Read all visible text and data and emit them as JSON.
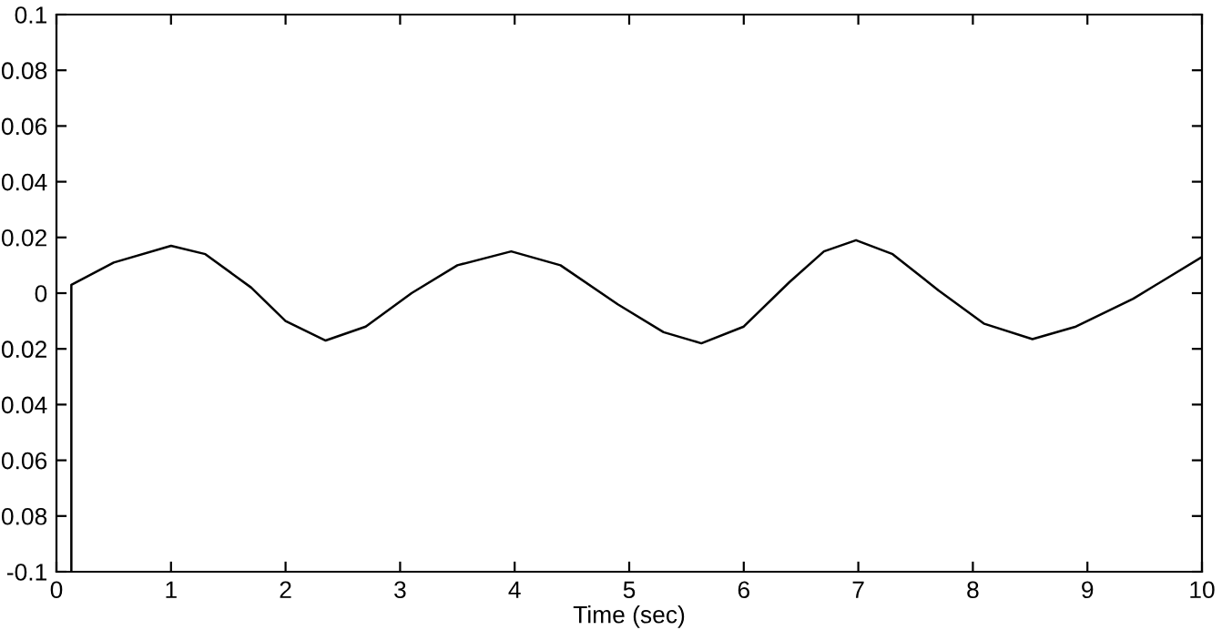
{
  "chart_data": {
    "type": "line",
    "xlabel": "Time (sec)",
    "x": [
      0.13,
      0.13,
      0.5,
      1.0,
      1.3,
      1.7,
      2.0,
      2.35,
      2.7,
      3.1,
      3.5,
      3.97,
      4.4,
      4.9,
      5.3,
      5.63,
      6.0,
      6.4,
      6.7,
      6.98,
      7.3,
      7.7,
      8.1,
      8.52,
      8.9,
      9.4,
      10
    ],
    "series": [
      {
        "color": "#000000",
        "values": [
          -0.1,
          0.003,
          0.011,
          0.017,
          0.014,
          0.002,
          -0.01,
          -0.017,
          -0.012,
          0.0,
          0.01,
          0.015,
          0.01,
          -0.004,
          -0.014,
          -0.018,
          -0.012,
          0.004,
          0.015,
          0.019,
          0.014,
          0.001,
          -0.011,
          -0.0165,
          -0.012,
          -0.002,
          0.013
        ]
      }
    ],
    "xlim": [
      0,
      10
    ],
    "ylim": [
      -0.1,
      0.1
    ],
    "xticks": [
      0,
      1,
      2,
      3,
      4,
      5,
      6,
      7,
      8,
      9,
      10
    ],
    "yticks": [
      -0.1,
      {
        "value": -0.08,
        "label": "0.08"
      },
      {
        "value": -0.06,
        "label": "0.06"
      },
      {
        "value": -0.04,
        "label": "0.04"
      },
      {
        "value": -0.02,
        "label": "0.02"
      },
      0,
      0.02,
      0.04,
      0.06,
      0.08,
      0.1
    ],
    "grid": false,
    "legend": false,
    "marker": "none",
    "line_style": "solid"
  }
}
